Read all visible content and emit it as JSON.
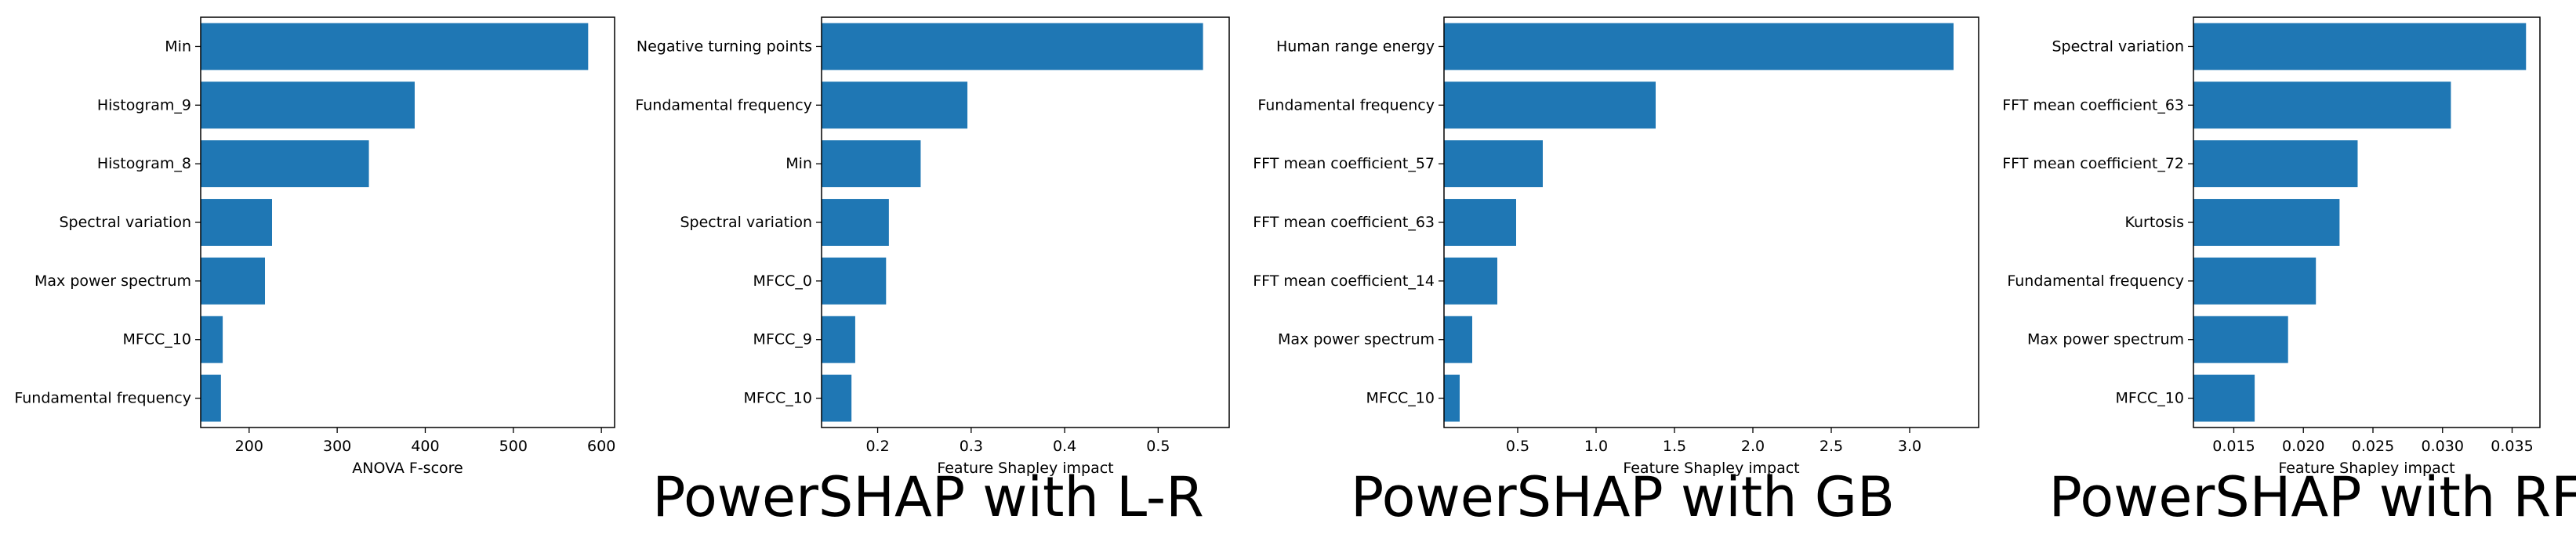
{
  "bar_color": "#1f77b4",
  "chart_data": [
    {
      "type": "bar",
      "orientation": "horizontal",
      "title": "",
      "xlabel": "ANOVA F-score",
      "ylabel": "",
      "categories": [
        "Min",
        "Histogram_9",
        "Histogram_8",
        "Spectral variation",
        "Max power spectrum",
        "MFCC_10",
        "Fundamental frequency"
      ],
      "values": [
        585,
        388,
        336,
        226,
        218,
        170,
        168
      ],
      "xlim": [
        145,
        615
      ],
      "xticks": [
        200,
        300,
        400,
        500,
        600
      ],
      "xtick_labels": [
        "200",
        "300",
        "400",
        "500",
        "600"
      ]
    },
    {
      "type": "bar",
      "orientation": "horizontal",
      "title": "PowerSHAP with L-R",
      "xlabel": "Feature Shapley impact",
      "ylabel": "",
      "categories": [
        "Negative turning points",
        "Fundamental frequency",
        "Min",
        "Spectral variation",
        "MFCC_0",
        "MFCC_9",
        "MFCC_10"
      ],
      "values": [
        0.548,
        0.296,
        0.246,
        0.212,
        0.209,
        0.176,
        0.172
      ],
      "xlim": [
        0.14,
        0.576
      ],
      "xticks": [
        0.2,
        0.3,
        0.4,
        0.5
      ],
      "xtick_labels": [
        "0.2",
        "0.3",
        "0.4",
        "0.5"
      ]
    },
    {
      "type": "bar",
      "orientation": "horizontal",
      "title": "PowerSHAP with GB",
      "xlabel": "Feature Shapley impact",
      "ylabel": "",
      "categories": [
        "Human range energy",
        "Fundamental frequency",
        "FFT mean coefficient_57",
        "FFT mean coefficient_63",
        "FFT mean coefficient_14",
        "Max power spectrum",
        "MFCC_10"
      ],
      "values": [
        3.28,
        1.38,
        0.66,
        0.49,
        0.37,
        0.21,
        0.13
      ],
      "xlim": [
        0.03,
        3.44
      ],
      "xticks": [
        0.5,
        1.0,
        1.5,
        2.0,
        2.5,
        3.0
      ],
      "xtick_labels": [
        "0.5",
        "1.0",
        "1.5",
        "2.0",
        "2.5",
        "3.0"
      ]
    },
    {
      "type": "bar",
      "orientation": "horizontal",
      "title": "PowerSHAP with RF",
      "xlabel": "Feature Shapley impact",
      "ylabel": "",
      "categories": [
        "Spectral variation",
        "FFT mean coefficient_63",
        "FFT mean coefficient_72",
        "Kurtosis",
        "Fundamental frequency",
        "Max power spectrum",
        "MFCC_10"
      ],
      "values": [
        0.036,
        0.0306,
        0.0239,
        0.0226,
        0.0209,
        0.0189,
        0.0165
      ],
      "xlim": [
        0.0121,
        0.037
      ],
      "xticks": [
        0.015,
        0.02,
        0.025,
        0.03,
        0.035
      ],
      "xtick_labels": [
        "0.015",
        "0.020",
        "0.025",
        "0.030",
        "0.035"
      ]
    }
  ]
}
